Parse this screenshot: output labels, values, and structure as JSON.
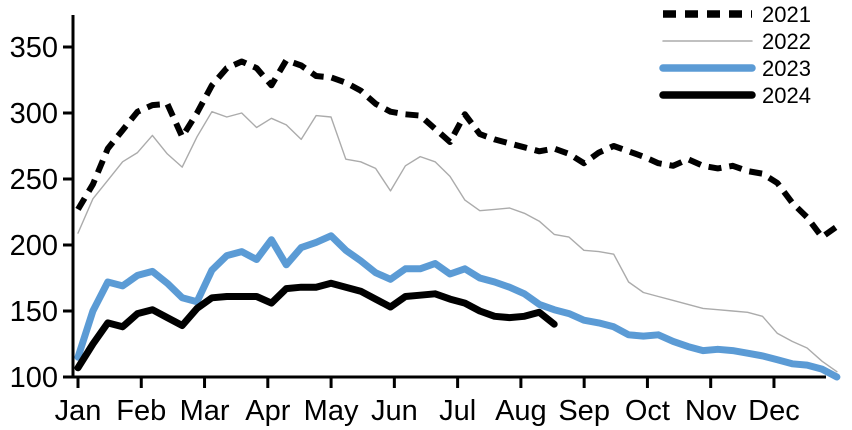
{
  "chart_data": {
    "type": "line",
    "title": "",
    "x_axis": {
      "label": "",
      "unit": "week-of-year",
      "tick_labels": [
        "Jan",
        "Feb",
        "Mar",
        "Apr",
        "May",
        "Jun",
        "Jul",
        "Aug",
        "Sep",
        "Oct",
        "Nov",
        "Dec"
      ]
    },
    "y_axis": {
      "label": "",
      "ticks": [
        100,
        150,
        200,
        250,
        300,
        350
      ],
      "range": [
        100,
        374
      ],
      "grid": false
    },
    "legend": {
      "position": "top-right",
      "entries": [
        "2021",
        "2022",
        "2023",
        "2024"
      ]
    },
    "series": [
      {
        "name": "2021",
        "color": "#000000",
        "style": "dashed",
        "width": 6,
        "values": [
          227,
          246,
          273,
          287,
          301,
          306,
          307,
          282,
          300,
          321,
          334,
          339,
          334,
          321,
          340,
          336,
          328,
          327,
          323,
          317,
          307,
          301,
          299,
          298,
          288,
          278,
          299,
          284,
          280,
          277,
          274,
          271,
          273,
          269,
          262,
          270,
          275,
          271,
          267,
          262,
          260,
          265,
          260,
          258,
          260,
          256,
          254,
          247,
          232,
          221,
          206,
          214
        ]
      },
      {
        "name": "2022",
        "color": "#ABABAB",
        "style": "solid",
        "width": 1.4,
        "values": [
          209,
          235,
          249,
          263,
          270,
          283,
          269,
          259,
          282,
          301,
          297,
          300,
          289,
          296,
          291,
          280,
          298,
          297,
          265,
          263,
          258,
          241,
          260,
          267,
          263,
          252,
          234,
          226,
          227,
          228,
          224,
          218,
          208,
          206,
          196,
          195,
          193,
          172,
          164,
          161,
          158,
          155,
          152,
          151,
          150,
          149,
          146,
          133,
          127,
          122,
          112,
          104
        ]
      },
      {
        "name": "2023",
        "color": "#5B9BD5",
        "style": "solid",
        "width": 7,
        "values": [
          115,
          150,
          172,
          169,
          177,
          180,
          171,
          160,
          157,
          181,
          192,
          195,
          189,
          204,
          185,
          198,
          202,
          207,
          196,
          188,
          179,
          174,
          182,
          182,
          186,
          178,
          182,
          175,
          172,
          168,
          163,
          155,
          151,
          148,
          143,
          141,
          138,
          132,
          131,
          132,
          127,
          123,
          120,
          121,
          120,
          118,
          116,
          113,
          110,
          109,
          106,
          100
        ]
      },
      {
        "name": "2024",
        "color": "#000000",
        "style": "solid",
        "width": 7,
        "values": [
          107,
          125,
          141,
          138,
          148,
          151,
          145,
          139,
          152,
          160,
          161,
          161,
          161,
          156,
          167,
          168,
          168,
          171,
          168,
          165,
          159,
          153,
          161,
          162,
          163,
          159,
          156,
          150,
          146,
          145,
          146,
          149,
          140
        ]
      }
    ]
  }
}
